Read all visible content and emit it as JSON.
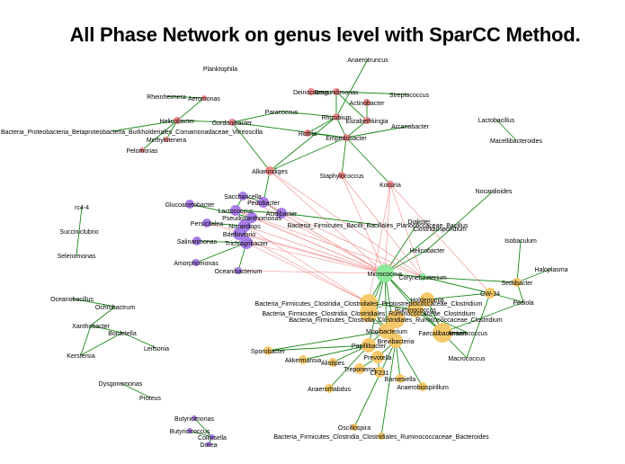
{
  "title": "All Phase Network on genus level with SparCC Method.",
  "colors": {
    "positive_edge": "#1a8a1a",
    "negative_edge": "#f08a8a",
    "group_red": "#f08a8a",
    "group_purple": "#a87de8",
    "group_orange": "#f5c96b",
    "group_green": "#8ee89a",
    "group_gray": "#b9b9c9"
  },
  "nodes": [
    {
      "id": "Anaerotruncus",
      "label": "Anaerotruncus",
      "group": "red"
    },
    {
      "id": "Planktophila",
      "label": "Planktophila",
      "group": "gray"
    },
    {
      "id": "Rheinheimera",
      "label": "Rheinheimera",
      "group": "red"
    },
    {
      "id": "Aeromonas",
      "label": "Aeromonas",
      "group": "red"
    },
    {
      "id": "Deinococcus",
      "label": "Deinococcus",
      "group": "red"
    },
    {
      "id": "Bregundimonas",
      "label": "Bregundimonas",
      "group": "red"
    },
    {
      "id": "Streptococcus",
      "label": "Streptococcus",
      "group": "red"
    },
    {
      "id": "Actinobacter",
      "label": "Actinobacter",
      "group": "red"
    },
    {
      "id": "Paracoccus",
      "label": "Paracoccus",
      "group": "red"
    },
    {
      "id": "Rhizobium",
      "label": "Rhizobium",
      "group": "red"
    },
    {
      "id": "Elizabethkingia",
      "label": "Elizabethkingia",
      "group": "red"
    },
    {
      "id": "Lactobacillus",
      "label": "Lactobacillus",
      "group": "gray"
    },
    {
      "id": "Helicobacter1",
      "label": "Helicobacter",
      "group": "red"
    },
    {
      "id": "Gordonibacter",
      "label": "Gordonibacter",
      "group": "red"
    },
    {
      "id": "Arcanobacter",
      "label": "Arcanobacter",
      "group": "red"
    },
    {
      "id": "Macellibacteroides",
      "label": "Macellibacteroides",
      "group": "gray"
    },
    {
      "id": "Betaproteo",
      "label": "Bacteria_Proteobacteria_Betaproteobacteria_Burkholderiales_Comamonadaceae_Vitreoscilla",
      "group": "red"
    },
    {
      "id": "Rothia",
      "label": "Rothia",
      "group": "red"
    },
    {
      "id": "Empedobacter",
      "label": "Empedobacter",
      "group": "red"
    },
    {
      "id": "Methylotenera",
      "label": "Methylotenera",
      "group": "red"
    },
    {
      "id": "Pelomonas",
      "label": "Pelomonas",
      "group": "red"
    },
    {
      "id": "Alkanindiges",
      "label": "Alkanindiges",
      "group": "red"
    },
    {
      "id": "Staphylococcus",
      "label": "Staphylococcus",
      "group": "red"
    },
    {
      "id": "Kocuria",
      "label": "Kocuria",
      "group": "red"
    },
    {
      "id": "Nocardioides",
      "label": "Nocardioides",
      "group": "gray"
    },
    {
      "id": "Saccharicella",
      "label": "Saccharicella",
      "group": "purple"
    },
    {
      "id": "Glucoacetobacter",
      "label": "Glucoacetobacter",
      "group": "purple"
    },
    {
      "id": "Pedobacter",
      "label": "Pedobacter",
      "group": "purple"
    },
    {
      "id": "Lactococcus",
      "label": "Lactococcus",
      "group": "purple"
    },
    {
      "id": "Acidibacter",
      "label": "Acidibacter",
      "group": "purple"
    },
    {
      "id": "Pseudoxanthomonas",
      "label": "Pseudoxanthomonas",
      "group": "purple"
    },
    {
      "id": "rc4-4",
      "label": "rc4-4",
      "group": "gray"
    },
    {
      "id": "Persicitalea",
      "label": "Persicitalea",
      "group": "purple"
    },
    {
      "id": "Nocardiops",
      "label": "Nocardiops",
      "group": "purple"
    },
    {
      "id": "Bdellovibrio",
      "label": "Bdellovibrio",
      "group": "purple"
    },
    {
      "id": "Bacilli",
      "label": "Bacteria_Firmicutes_Bacilli_Bacillales_Planococcaceae_Bacillus",
      "group": "green"
    },
    {
      "id": "Dialister",
      "label": "Dialister",
      "group": "green"
    },
    {
      "id": "Clostridiosporidium",
      "label": "Clostridiosporidium",
      "group": "green"
    },
    {
      "id": "Succiniclubrio",
      "label": "Succiniclubrio",
      "group": "gray"
    },
    {
      "id": "Salinarimonas",
      "label": "Salinarimonas",
      "group": "purple"
    },
    {
      "id": "Trichlagribacter",
      "label": "Trichlagribacter",
      "group": "purple"
    },
    {
      "id": "Helicobacter2",
      "label": "Helicobacter",
      "group": "green"
    },
    {
      "id": "Isobaculum",
      "label": "Isobaculum",
      "group": "gray"
    },
    {
      "id": "Selenomonas",
      "label": "Selenomonas",
      "group": "gray"
    },
    {
      "id": "Amorphomonas",
      "label": "Amorphomonas",
      "group": "purple"
    },
    {
      "id": "Oceanibacterium",
      "label": "Oceanibacterium",
      "group": "purple"
    },
    {
      "id": "Haloplasma",
      "label": "Haloplasma",
      "group": "gray"
    },
    {
      "id": "Micrococcus",
      "label": "Micrococcus",
      "group": "green"
    },
    {
      "id": "Corynebacterium",
      "label": "Corynebacterium",
      "group": "green"
    },
    {
      "id": "Sediibacter",
      "label": "Sediibacter",
      "group": "orange"
    },
    {
      "id": "Oceanobacillus",
      "label": "Oceanobacillus",
      "group": "gray"
    },
    {
      "id": "GW-34",
      "label": "GW-34",
      "group": "orange"
    },
    {
      "id": "Holdemania",
      "label": "Holdemania",
      "group": "orange"
    },
    {
      "id": "Clostridiales1",
      "label": "Bacteria_Firmicutes_Clostridia_Clostridiales_Peptostreptococcaceae_Clostridium",
      "group": "orange"
    },
    {
      "id": "Ochrobactrum",
      "label": "Ochrobactrum",
      "group": "gray"
    },
    {
      "id": "Clostridiales2",
      "label": "Bacteria_Firmicutes_Clostridia_Clostridiales_Ruminococcaceae_Clostridium",
      "group": "orange"
    },
    {
      "id": "Clostridiales3",
      "label": "Bacteria_Firmicutes_Clostridia_Clostridiales_Ruminococcaceae_Clostridium",
      "group": "orange"
    },
    {
      "id": "Ruminococcus",
      "label": "Ruminococcus",
      "group": "orange"
    },
    {
      "id": "Xanthobacter",
      "label": "Xanthobacter",
      "group": "gray"
    },
    {
      "id": "Bordetella",
      "label": "Bordetella",
      "group": "gray"
    },
    {
      "id": "Mogibacterium",
      "label": "Mogibacterium",
      "group": "orange"
    },
    {
      "id": "Papillibacter",
      "label": "Papillibacter",
      "group": "orange"
    },
    {
      "id": "Brevibacteria",
      "label": "Brevibacteria",
      "group": "orange"
    },
    {
      "id": "Leifsonia",
      "label": "Leifsonia",
      "group": "gray"
    },
    {
      "id": "Sporobacter",
      "label": "Sporobacter",
      "group": "orange"
    },
    {
      "id": "Kerstersia",
      "label": "Kerstersia",
      "group": "gray"
    },
    {
      "id": "Akkermansia",
      "label": "Akkermansia",
      "group": "orange"
    },
    {
      "id": "Alistipes",
      "label": "Alistipes",
      "group": "orange"
    },
    {
      "id": "Prevotella",
      "label": "Prevotella",
      "group": "orange"
    },
    {
      "id": "Macrococcus",
      "label": "Macrococcus",
      "group": "orange"
    },
    {
      "id": "Treponema",
      "label": "Treponema",
      "group": "orange"
    },
    {
      "id": "CF231",
      "label": "CF231",
      "group": "orange"
    },
    {
      "id": "Barnesiella",
      "label": "Barnesiella",
      "group": "orange"
    },
    {
      "id": "Anaerobiospirillum",
      "label": "Anaerobiospirillum",
      "group": "orange"
    },
    {
      "id": "Anaerorhabdus",
      "label": "Anaerorhabdus",
      "group": "orange"
    },
    {
      "id": "Dysgonomonas",
      "label": "Dysgonomonas",
      "group": "gray"
    },
    {
      "id": "Proteus",
      "label": "Proteus",
      "group": "gray"
    },
    {
      "id": "Oscillospira",
      "label": "Oscillospira",
      "group": "orange"
    },
    {
      "id": "Bacteroidales",
      "label": "Bacteria_Firmicutes_Clostridia_Clostridiales_Ruminococcaceae_Bacteroides",
      "group": "orange"
    },
    {
      "id": "Butyricimonas",
      "label": "Butyricimonas",
      "group": "purple"
    },
    {
      "id": "Butyricicoccus",
      "label": "Butyricicoccus",
      "group": "purple"
    },
    {
      "id": "Collinsella",
      "label": "Collinsella",
      "group": "purple"
    },
    {
      "id": "Dorea",
      "label": "Dorea",
      "group": "purple"
    },
    {
      "id": "Pediola",
      "label": "Pediola",
      "group": "orange"
    },
    {
      "id": "Faecalibacterium",
      "label": "Faecalibacterium",
      "group": "orange"
    },
    {
      "id": "Anaerococcus",
      "label": "Anaerococcus",
      "group": "orange"
    }
  ],
  "edges": [
    [
      "Aeromonas",
      "Rheinheimera",
      "pos"
    ],
    [
      "Aeromonas",
      "Helicobacter1",
      "pos"
    ],
    [
      "Helicobacter1",
      "Methylotenera",
      "pos"
    ],
    [
      "Helicobacter1",
      "Pelomonas",
      "pos"
    ],
    [
      "Helicobacter1",
      "Gordonibacter",
      "pos"
    ],
    [
      "Helicobacter1",
      "Betaproteo",
      "pos"
    ],
    [
      "Gordonibacter",
      "Paracoccus",
      "pos"
    ],
    [
      "Gordonibacter",
      "Alkanindiges",
      "pos"
    ],
    [
      "Gordonibacter",
      "Empedobacter",
      "pos"
    ],
    [
      "Deinococcus",
      "Bregundimonas",
      "pos"
    ],
    [
      "Bregundimonas",
      "Rhizobium",
      "pos"
    ],
    [
      "Bregundimonas",
      "Elizabethkingia",
      "pos"
    ],
    [
      "Bregundimonas",
      "Streptococcus",
      "pos"
    ],
    [
      "Actinobacter",
      "Elizabethkingia",
      "pos"
    ],
    [
      "Rhizobium",
      "Empedobacter",
      "pos"
    ],
    [
      "Elizabethkingia",
      "Empedobacter",
      "pos"
    ],
    [
      "Rothia",
      "Empedobacter",
      "pos"
    ],
    [
      "Rothia",
      "Rhizobium",
      "pos"
    ],
    [
      "Empedobacter",
      "Arcanobacter",
      "pos"
    ],
    [
      "Empedobacter",
      "Alkanindiges",
      "pos"
    ],
    [
      "Empedobacter",
      "Staphylococcus",
      "pos"
    ],
    [
      "Empedobacter",
      "Kocuria",
      "pos"
    ],
    [
      "Alkanindiges",
      "Rhizobium",
      "pos"
    ],
    [
      "Anaerotruncus",
      "Rhizobium",
      "pos"
    ],
    [
      "Paracoccus",
      "Rhizobium",
      "pos"
    ],
    [
      "Lactobacillus",
      "Macellibacteroides",
      "pos"
    ],
    [
      "Alkanindiges",
      "Pedobacter",
      "pos"
    ],
    [
      "Saccharicella",
      "Pedobacter",
      "pos"
    ],
    [
      "Saccharicella",
      "Lactococcus",
      "pos"
    ],
    [
      "Glucoacetobacter",
      "Pseudoxanthomonas",
      "pos"
    ],
    [
      "Pedobacter",
      "Acidibacter",
      "pos"
    ],
    [
      "Pseudoxanthomonas",
      "Nocardiops",
      "pos"
    ],
    [
      "Persicitalea",
      "Nocardiops",
      "pos"
    ],
    [
      "Nocardiops",
      "Bdellovibrio",
      "pos"
    ],
    [
      "Bdellovibrio",
      "Trichlagribacter",
      "pos"
    ],
    [
      "Salinarimonas",
      "Trichlagribacter",
      "pos"
    ],
    [
      "Trichlagribacter",
      "Amorphomonas",
      "pos"
    ],
    [
      "Trichlagribacter",
      "Oceanibacterium",
      "pos"
    ],
    [
      "Acidibacter",
      "Bacilli",
      "pos"
    ],
    [
      "Lactococcus",
      "Acidibacter",
      "pos"
    ],
    [
      "rc4-4",
      "Succiniclubrio",
      "pos"
    ],
    [
      "Succiniclubrio",
      "Selenomonas",
      "pos"
    ],
    [
      "Dialister",
      "Micrococcus",
      "pos"
    ],
    [
      "Clostridiosporidium",
      "Micrococcus",
      "pos"
    ],
    [
      "Helicobacter2",
      "Micrococcus",
      "pos"
    ],
    [
      "Nocardioides",
      "Helicobacter2",
      "pos"
    ],
    [
      "Micrococcus",
      "Corynebacterium",
      "pos"
    ],
    [
      "Micrococcus",
      "Clostridiales1",
      "pos"
    ],
    [
      "Micrococcus",
      "Clostridiales2",
      "pos"
    ],
    [
      "Micrococcus",
      "Ruminococcus",
      "pos"
    ],
    [
      "Micrococcus",
      "Mogibacterium",
      "pos"
    ],
    [
      "Micrococcus",
      "Papillibacter",
      "pos"
    ],
    [
      "Micrococcus",
      "Brevibacteria",
      "pos"
    ],
    [
      "Micrococcus",
      "Faecalibacterium",
      "pos"
    ],
    [
      "Corynebacterium",
      "GW-34",
      "pos"
    ],
    [
      "Corynebacterium",
      "Sediibacter",
      "pos"
    ],
    [
      "GW-34",
      "Holdemania",
      "pos"
    ],
    [
      "GW-34",
      "Pediola",
      "pos"
    ],
    [
      "GW-34",
      "Macrococcus",
      "pos"
    ],
    [
      "Haloplasma",
      "Sediibacter",
      "pos"
    ],
    [
      "Sediibacter",
      "Pediola",
      "pos"
    ],
    [
      "Clostridiales1",
      "Ruminococcus",
      "pos"
    ],
    [
      "Clostridiales2",
      "Mogibacterium",
      "pos"
    ],
    [
      "Clostridiales3",
      "Papillibacter",
      "pos"
    ],
    [
      "Ruminococcus",
      "Anaerococcus",
      "pos"
    ],
    [
      "Ruminococcus",
      "Faecalibacterium",
      "pos"
    ],
    [
      "Brevibacteria",
      "Prevotella",
      "pos"
    ],
    [
      "Prevotella",
      "Treponema",
      "pos"
    ],
    [
      "Prevotella",
      "CF231",
      "pos"
    ],
    [
      "Papillibacter",
      "Akkermansia",
      "pos"
    ],
    [
      "Papillibacter",
      "Alistipes",
      "pos"
    ],
    [
      "Papillibacter",
      "Sporobacter",
      "pos"
    ],
    [
      "Papillibacter",
      "Anaerorhabdus",
      "pos"
    ],
    [
      "Brevibacteria",
      "Barnesiella",
      "pos"
    ],
    [
      "Brevibacteria",
      "Anaerobiospirillum",
      "pos"
    ],
    [
      "Faecalibacterium",
      "Macrococcus",
      "pos"
    ],
    [
      "Faecalibacterium",
      "Anaerococcus",
      "pos"
    ],
    [
      "Brevibacteria",
      "Oscillospira",
      "pos"
    ],
    [
      "Brevibacteria",
      "Bacteroidales",
      "pos"
    ],
    [
      "Holdemania",
      "Faecalibacterium",
      "pos"
    ],
    [
      "Pediola",
      "Faecalibacterium",
      "pos"
    ],
    [
      "Mogibacterium",
      "Brevibacteria",
      "pos"
    ],
    [
      "Sporobacter",
      "Mogibacterium",
      "pos"
    ],
    [
      "Clostridiales1",
      "Mogibacterium",
      "pos"
    ],
    [
      "Oceanobacillus",
      "Ochrobactrum",
      "pos"
    ],
    [
      "Ochrobactrum",
      "Xanthobacter",
      "pos"
    ],
    [
      "Xanthobacter",
      "Bordetella",
      "pos"
    ],
    [
      "Bordetella",
      "Leifsonia",
      "pos"
    ],
    [
      "Bordetella",
      "Kerstersia",
      "pos"
    ],
    [
      "Xanthobacter",
      "Kerstersia",
      "pos"
    ],
    [
      "Dysgonomonas",
      "Proteus",
      "pos"
    ],
    [
      "Butyricimonas",
      "Collinsella",
      "pos"
    ],
    [
      "Butyricicoccus",
      "Collinsella",
      "pos"
    ],
    [
      "Collinsella",
      "Dorea",
      "pos"
    ],
    [
      "Isobaculum",
      "Sediibacter",
      "pos"
    ],
    [
      "Alkanindiges",
      "Micrococcus",
      "neg"
    ],
    [
      "Staphylococcus",
      "Micrococcus",
      "neg"
    ],
    [
      "Kocuria",
      "Micrococcus",
      "neg"
    ],
    [
      "Kocuria",
      "Corynebacterium",
      "neg"
    ],
    [
      "Pedobacter",
      "Micrococcus",
      "neg"
    ],
    [
      "Nocardiops",
      "Micrococcus",
      "neg"
    ],
    [
      "Bdellovibrio",
      "Micrococcus",
      "neg"
    ],
    [
      "Trichlagribacter",
      "Micrococcus",
      "neg"
    ],
    [
      "Acidibacter",
      "Micrococcus",
      "neg"
    ],
    [
      "Lactococcus",
      "Micrococcus",
      "neg"
    ],
    [
      "Oceanibacterium",
      "Micrococcus",
      "neg"
    ],
    [
      "Saccharicella",
      "Micrococcus",
      "neg"
    ],
    [
      "Pseudoxanthomonas",
      "Micrococcus",
      "neg"
    ],
    [
      "Bdellovibrio",
      "Clostridiales1",
      "neg"
    ],
    [
      "Trichlagribacter",
      "Clostridiales1",
      "neg"
    ],
    [
      "Kocuria",
      "Clostridiales1",
      "neg"
    ],
    [
      "Staphylococcus",
      "Corynebacterium",
      "neg"
    ],
    [
      "Alkanindiges",
      "Corynebacterium",
      "neg"
    ],
    [
      "Pedobacter",
      "Corynebacterium",
      "neg"
    ],
    [
      "Lactococcus",
      "Corynebacterium",
      "neg"
    ],
    [
      "Kocuria",
      "GW-34",
      "neg"
    ],
    [
      "Nocardiops",
      "Clostridiales1",
      "neg"
    ],
    [
      "Persicitalea",
      "Micrococcus",
      "neg"
    ]
  ]
}
